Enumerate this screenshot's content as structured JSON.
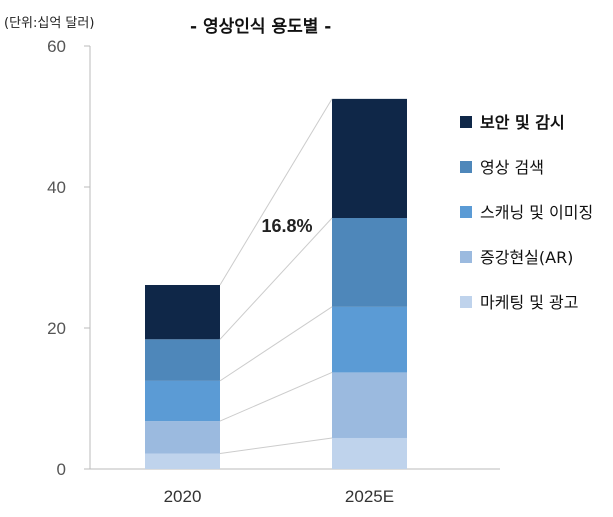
{
  "chart_data": {
    "type": "bar",
    "stacked": true,
    "title": "- 영상인식 용도별 -",
    "unit_label": "(단위:십억 달러)",
    "categories": [
      "2020",
      "2025E"
    ],
    "ylim": [
      0,
      60
    ],
    "yticks": [
      0,
      20,
      40,
      60
    ],
    "grid": false,
    "legend_position": "right",
    "annotation": "16.8%",
    "series": [
      {
        "name": "마케팅 및 광고",
        "color": "#bfd3ec",
        "values": [
          2.2,
          4.4
        ]
      },
      {
        "name": "증강현실(AR)",
        "color": "#9bbadf",
        "values": [
          4.6,
          9.3
        ]
      },
      {
        "name": "스캐닝 및 이미징",
        "color": "#5b9bd5",
        "values": [
          5.7,
          9.3
        ]
      },
      {
        "name": "영상 검색",
        "color": "#4e87ba",
        "values": [
          5.9,
          12.6
        ]
      },
      {
        "name": "보안 및 감시",
        "color": "#0f2748",
        "values": [
          7.7,
          16.9
        ]
      }
    ]
  }
}
